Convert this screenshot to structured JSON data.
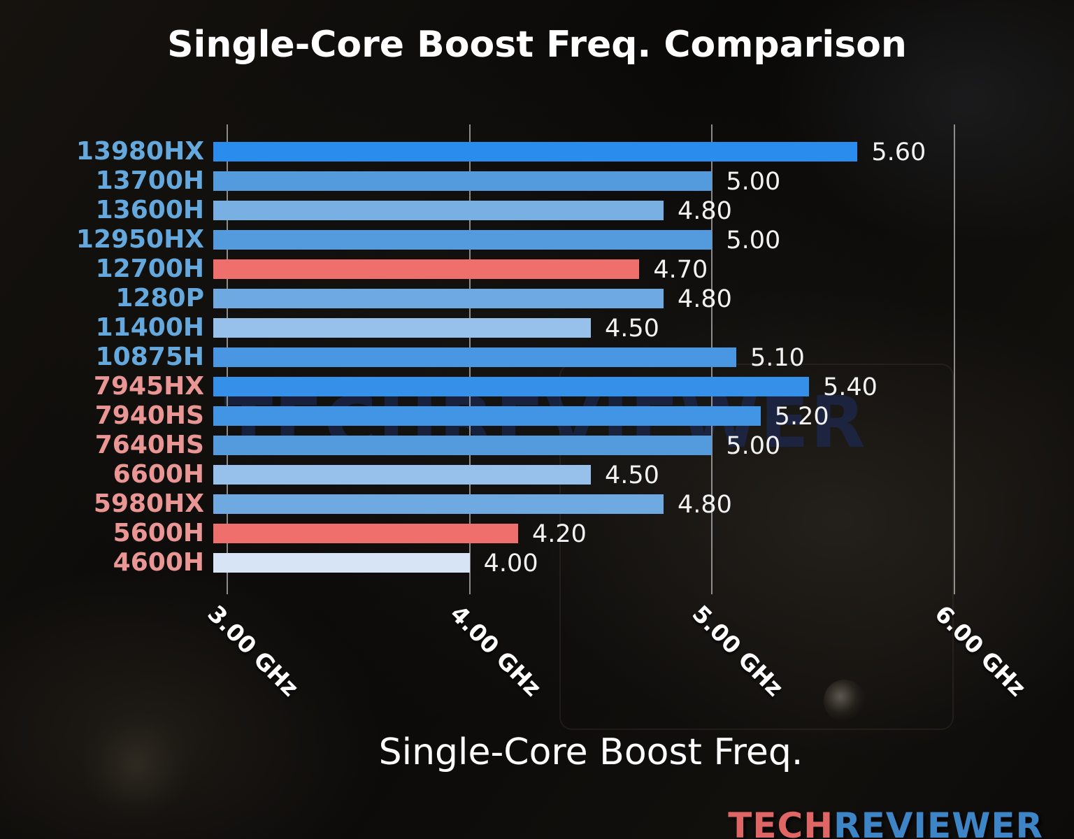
{
  "title": "Single-Core Boost Freq. Comparison",
  "watermark": "TECHREVIEWER",
  "logo": {
    "tech": "TECH",
    "reviewer": "REVIEWER"
  },
  "colors": {
    "intel_label": "#64a8de",
    "amd_label": "#ea9695",
    "highlight_bar": "#ee6f6c",
    "grid": "rgba(192,192,192,0.70)",
    "value_text": "#f2f2f2"
  },
  "chart_data": {
    "type": "bar",
    "orientation": "horizontal",
    "title": "Single-Core Boost Freq. Comparison",
    "xlabel": "Single-Core Boost Freq.",
    "xlim": [
      3.0,
      6.0
    ],
    "grid": true,
    "x_ticks": [
      {
        "value": 3.0,
        "label": "3.00 GHz"
      },
      {
        "value": 4.0,
        "label": "4.00 GHz"
      },
      {
        "value": 5.0,
        "label": "5.00 GHz"
      },
      {
        "value": 6.0,
        "label": "6.00 GHz"
      }
    ],
    "bars": [
      {
        "label": "13980HX",
        "value": 5.6,
        "value_label": "5.60",
        "vendor": "intel",
        "bar_color": "#2a8ced",
        "label_color": "#64a8de"
      },
      {
        "label": "13700H",
        "value": 5.0,
        "value_label": "5.00",
        "vendor": "intel",
        "bar_color": "#549bde",
        "label_color": "#64a8de"
      },
      {
        "label": "13600H",
        "value": 4.8,
        "value_label": "4.80",
        "vendor": "intel",
        "bar_color": "#79b0e4",
        "label_color": "#64a8de"
      },
      {
        "label": "12950HX",
        "value": 5.0,
        "value_label": "5.00",
        "vendor": "intel",
        "bar_color": "#549bde",
        "label_color": "#64a8de"
      },
      {
        "label": "12700H",
        "value": 4.7,
        "value_label": "4.70",
        "vendor": "intel",
        "bar_color": "#ee6f6c",
        "label_color": "#64a8de"
      },
      {
        "label": "1280P",
        "value": 4.8,
        "value_label": "4.80",
        "vendor": "intel",
        "bar_color": "#6fa9e2",
        "label_color": "#64a8de"
      },
      {
        "label": "11400H",
        "value": 4.5,
        "value_label": "4.50",
        "vendor": "intel",
        "bar_color": "#97c0ea",
        "label_color": "#64a8de"
      },
      {
        "label": "10875H",
        "value": 5.1,
        "value_label": "5.10",
        "vendor": "intel",
        "bar_color": "#4997e2",
        "label_color": "#64a8de"
      },
      {
        "label": "7945HX",
        "value": 5.4,
        "value_label": "5.40",
        "vendor": "amd",
        "bar_color": "#3590ea",
        "label_color": "#ea9695"
      },
      {
        "label": "7940HS",
        "value": 5.2,
        "value_label": "5.20",
        "vendor": "amd",
        "bar_color": "#4295e4",
        "label_color": "#ea9695"
      },
      {
        "label": "7640HS",
        "value": 5.0,
        "value_label": "5.00",
        "vendor": "amd",
        "bar_color": "#549bde",
        "label_color": "#ea9695"
      },
      {
        "label": "6600H",
        "value": 4.5,
        "value_label": "4.50",
        "vendor": "amd",
        "bar_color": "#97c0ea",
        "label_color": "#ea9695"
      },
      {
        "label": "5980HX",
        "value": 4.8,
        "value_label": "4.80",
        "vendor": "amd",
        "bar_color": "#6fa9e2",
        "label_color": "#ea9695"
      },
      {
        "label": "5600H",
        "value": 4.2,
        "value_label": "4.20",
        "vendor": "amd",
        "bar_color": "#ee6f6c",
        "label_color": "#ea9695"
      },
      {
        "label": "4600H",
        "value": 4.0,
        "value_label": "4.00",
        "vendor": "amd",
        "bar_color": "#d6e4f5",
        "label_color": "#ea9695"
      }
    ]
  }
}
